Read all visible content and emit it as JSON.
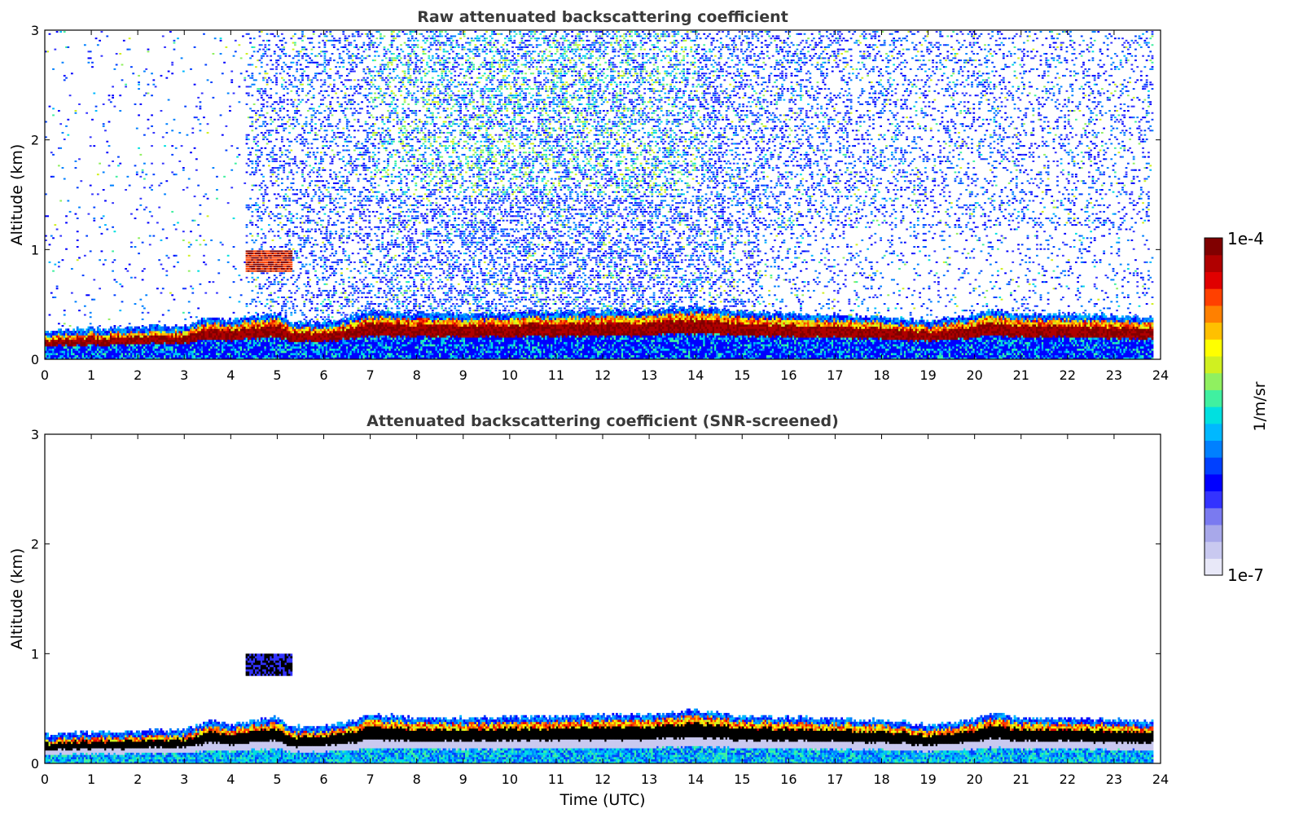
{
  "chart_data": [
    {
      "type": "heatmap",
      "title": "Raw attenuated backscattering coefficient",
      "xlabel": "",
      "ylabel": "Altitude (km)",
      "xlim": [
        0,
        24
      ],
      "ylim": [
        0,
        3
      ],
      "x_ticks": [
        0,
        1,
        2,
        3,
        4,
        5,
        6,
        7,
        8,
        9,
        10,
        11,
        12,
        13,
        14,
        15,
        16,
        17,
        18,
        19,
        20,
        21,
        22,
        23,
        24
      ],
      "y_ticks": [
        0,
        1,
        2,
        3
      ],
      "screened": false,
      "features": {
        "boundary_layer_top_km": [
          [
            0,
            0.2
          ],
          [
            0.7,
            0.22
          ],
          [
            1.5,
            0.23
          ],
          [
            2.3,
            0.24
          ],
          [
            3.0,
            0.25
          ],
          [
            3.5,
            0.32
          ],
          [
            4.0,
            0.3
          ],
          [
            4.4,
            0.33
          ],
          [
            5.0,
            0.36
          ],
          [
            5.3,
            0.27
          ],
          [
            6.0,
            0.28
          ],
          [
            6.5,
            0.32
          ],
          [
            7.0,
            0.38
          ],
          [
            8.0,
            0.36
          ],
          [
            9.0,
            0.35
          ],
          [
            10.0,
            0.36
          ],
          [
            11.0,
            0.37
          ],
          [
            12.0,
            0.38
          ],
          [
            13.0,
            0.38
          ],
          [
            14.0,
            0.42
          ],
          [
            14.5,
            0.4
          ],
          [
            15.0,
            0.37
          ],
          [
            16.0,
            0.36
          ],
          [
            17.0,
            0.35
          ],
          [
            18.0,
            0.33
          ],
          [
            19.0,
            0.29
          ],
          [
            20.0,
            0.34
          ],
          [
            20.3,
            0.4
          ],
          [
            21.0,
            0.35
          ],
          [
            22.0,
            0.35
          ],
          [
            23.0,
            0.34
          ],
          [
            23.8,
            0.32
          ]
        ],
        "cloud_layer": {
          "t_start": 4.3,
          "t_end": 5.3,
          "altitude_km": [
            0.8,
            1.0
          ]
        },
        "data_end_hour": 23.8
      }
    },
    {
      "type": "heatmap",
      "title": "Attenuated backscattering coefficient (SNR-screened)",
      "xlabel": "Time (UTC)",
      "ylabel": "Altitude (km)",
      "xlim": [
        0,
        24
      ],
      "ylim": [
        0,
        3
      ],
      "x_ticks": [
        0,
        1,
        2,
        3,
        4,
        5,
        6,
        7,
        8,
        9,
        10,
        11,
        12,
        13,
        14,
        15,
        16,
        17,
        18,
        19,
        20,
        21,
        22,
        23,
        24
      ],
      "y_ticks": [
        0,
        1,
        2,
        3
      ],
      "screened": true
    }
  ],
  "colorbar": {
    "label": "1/m/sr",
    "max_label": "1e-4",
    "min_label": "1e-7",
    "colors": [
      "#e8e8f8",
      "#c9c9f0",
      "#a8a8ea",
      "#7a7af0",
      "#3333ff",
      "#0000ff",
      "#0040ff",
      "#0080ff",
      "#00b8ff",
      "#00e0e0",
      "#40f0a0",
      "#90f060",
      "#d0f020",
      "#ffff00",
      "#ffc000",
      "#ff8000",
      "#ff4000",
      "#e00000",
      "#b00000",
      "#800000"
    ]
  }
}
